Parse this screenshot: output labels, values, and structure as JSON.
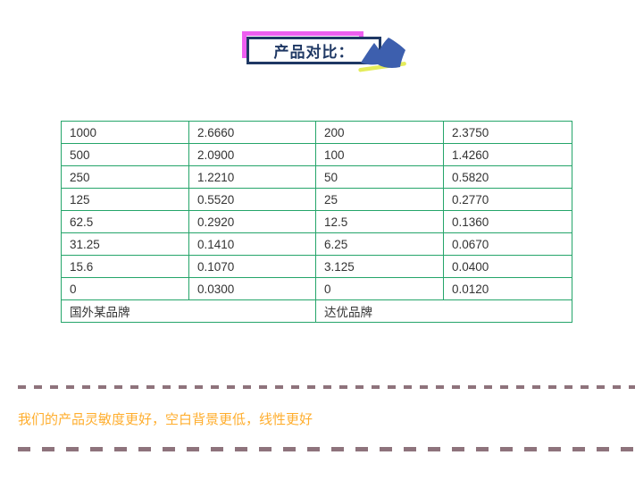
{
  "banner": {
    "title": "产品对比：",
    "icon": "brush-flag-icon"
  },
  "table": {
    "rows": [
      [
        "1000",
        "2.6660",
        "200",
        "2.3750"
      ],
      [
        "500",
        "2.0900",
        "100",
        "1.4260"
      ],
      [
        "250",
        "1.2210",
        "50",
        "0.5820"
      ],
      [
        "125",
        "0.5520",
        "25",
        "0.2770"
      ],
      [
        "62.5",
        "0.2920",
        "12.5",
        "0.1360"
      ],
      [
        "31.25",
        "0.1410",
        "6.25",
        "0.0670"
      ],
      [
        "15.6",
        "0.1070",
        "3.125",
        "0.0400"
      ],
      [
        "0",
        "0.0300",
        "0",
        "0.0120"
      ]
    ],
    "footer": [
      "国外某品牌",
      "达优品牌"
    ]
  },
  "note": {
    "text": "我们的产品灵敏度更好，空白背景更低，线性更好"
  },
  "colors": {
    "table_border": "#25a56a",
    "title_navy": "#1f3864",
    "banner_pink": "#ee5ff0",
    "icon_blue": "#3d5fae",
    "icon_yellow": "#e4ec5a",
    "note_orange": "#ffae2e",
    "dash_mauve": "#8e737c"
  }
}
